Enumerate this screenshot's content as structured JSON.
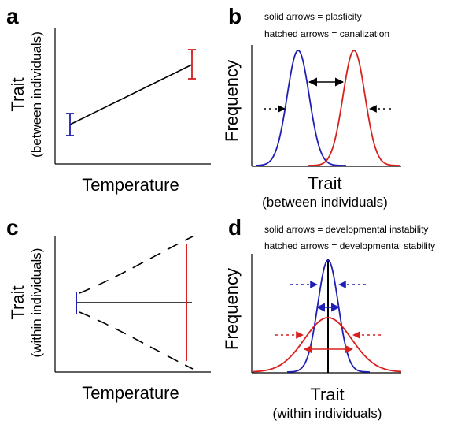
{
  "panels": {
    "a": {
      "letter": "a",
      "ylabel_line1": "Trait",
      "ylabel_line2": "(between individuals)",
      "xlabel": "Temperature"
    },
    "b": {
      "letter": "b",
      "legend_line1": "solid arrows = plasticity",
      "legend_line2": "hatched arrows = canalization",
      "ylabel": "Frequency",
      "xlabel_line1": "Trait",
      "xlabel_line2": "(between individuals)"
    },
    "c": {
      "letter": "c",
      "ylabel_line1": "Trait",
      "ylabel_line2": "(within individuals)",
      "xlabel": "Temperature"
    },
    "d": {
      "letter": "d",
      "legend_line1": "solid arrows = developmental instability",
      "legend_line2": "hatched arrows = developmental stability",
      "ylabel": "Frequency",
      "xlabel_line1": "Trait",
      "xlabel_line2": "(within individuals)"
    }
  },
  "colors": {
    "low_temperature": "#1f1fb4",
    "high_temperature": "#d8201e",
    "axis": "#000000"
  }
}
